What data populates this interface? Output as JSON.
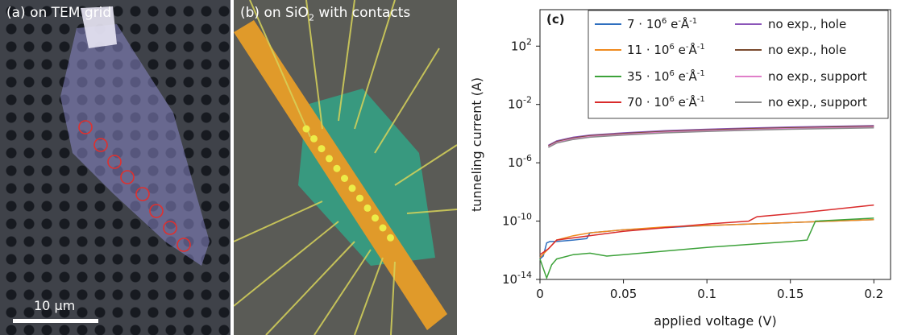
{
  "panels": {
    "a": {
      "label": "(a) on TEM grid",
      "scale_bar": "10 µm"
    },
    "b": {
      "label_pre": "(b) on SiO",
      "label_sub": "2",
      "label_post": " with contacts"
    }
  },
  "chart_data": {
    "type": "line",
    "panel_label": "(c)",
    "xlabel": "applied voltage (V)",
    "ylabel": "tunneling current (A)",
    "xlim": [
      0,
      0.21
    ],
    "ylim_log10": [
      -14,
      4.5
    ],
    "yscale": "log",
    "xticks": [
      0,
      0.05,
      0.1,
      0.15,
      0.2
    ],
    "xtick_labels": [
      "0",
      "0.05",
      "0.1",
      "0.15",
      "0.2"
    ],
    "yticks_log10": [
      2,
      -2,
      -6,
      -10,
      -14
    ],
    "ytick_base": "10",
    "ytick_exponents": [
      "2",
      "-2",
      "-6",
      "-10",
      "-14"
    ],
    "legend_position": "top",
    "series": [
      {
        "name_pre": "7 · 10",
        "name_sup": "6",
        "name_mid": " e",
        "name_sup2": "-",
        "name_post": "Å",
        "name_sup3": "-1",
        "color": "#2f6fbf",
        "x": [
          0,
          0.002,
          0.004,
          0.006,
          0.01,
          0.02,
          0.028,
          0.03,
          0.05,
          0.1,
          0.15,
          0.2
        ],
        "log10y": [
          -12.6,
          -12.4,
          -11.5,
          -11.4,
          -11.4,
          -11.3,
          -11.2,
          -10.8,
          -10.6,
          -10.3,
          -10.1,
          -9.9
        ]
      },
      {
        "name_pre": "11 · 10",
        "name_sup": "6",
        "name_mid": " e",
        "name_sup2": "-",
        "name_post": "Å",
        "name_sup3": "-1",
        "color": "#ef8a1f",
        "x": [
          0,
          0.005,
          0.01,
          0.02,
          0.03,
          0.05,
          0.075,
          0.1,
          0.125,
          0.15,
          0.175,
          0.2
        ],
        "log10y": [
          -12.5,
          -11.9,
          -11.3,
          -11.0,
          -10.8,
          -10.6,
          -10.4,
          -10.3,
          -10.2,
          -10.1,
          -10.0,
          -9.9
        ]
      },
      {
        "name_pre": "35 · 10",
        "name_sup": "6",
        "name_mid": " e",
        "name_sup2": "-",
        "name_post": "Å",
        "name_sup3": "-1",
        "color": "#3da23a",
        "x": [
          0,
          0.004,
          0.007,
          0.01,
          0.02,
          0.03,
          0.04,
          0.05,
          0.1,
          0.15,
          0.16,
          0.165,
          0.2
        ],
        "log10y": [
          -12.6,
          -13.9,
          -13.0,
          -12.6,
          -12.3,
          -12.2,
          -12.4,
          -12.3,
          -11.8,
          -11.4,
          -11.3,
          -10.0,
          -9.8
        ]
      },
      {
        "name_pre": "70 · 10",
        "name_sup": "6",
        "name_mid": " e",
        "name_sup2": "-",
        "name_post": "Å",
        "name_sup3": "-1",
        "color": "#d92b2b",
        "x": [
          0,
          0.005,
          0.01,
          0.05,
          0.1,
          0.125,
          0.13,
          0.15,
          0.175,
          0.2
        ],
        "log10y": [
          -12.3,
          -11.9,
          -11.3,
          -10.7,
          -10.2,
          -10.0,
          -9.7,
          -9.5,
          -9.2,
          -8.9
        ]
      },
      {
        "name": "no exp., hole",
        "color": "#8b55b8",
        "x": [
          0.005,
          0.01,
          0.02,
          0.03,
          0.05,
          0.075,
          0.1,
          0.125,
          0.15,
          0.175,
          0.2
        ],
        "log10y": [
          -4.8,
          -4.5,
          -4.25,
          -4.1,
          -3.95,
          -3.8,
          -3.7,
          -3.62,
          -3.55,
          -3.5,
          -3.45
        ]
      },
      {
        "name": "no exp., hole",
        "color": "#7a4a2e",
        "x": [
          0.005,
          0.01,
          0.02,
          0.03,
          0.05,
          0.075,
          0.1,
          0.125,
          0.15,
          0.175,
          0.2
        ],
        "log10y": [
          -4.85,
          -4.55,
          -4.3,
          -4.15,
          -4.0,
          -3.85,
          -3.75,
          -3.67,
          -3.6,
          -3.55,
          -3.5
        ]
      },
      {
        "name": "no exp., support",
        "color": "#e07fc9",
        "x": [
          0.005,
          0.01,
          0.02,
          0.03,
          0.05,
          0.075,
          0.1,
          0.125,
          0.15,
          0.175,
          0.2
        ],
        "log10y": [
          -4.9,
          -4.6,
          -4.35,
          -4.2,
          -4.05,
          -3.9,
          -3.8,
          -3.72,
          -3.65,
          -3.6,
          -3.55
        ]
      },
      {
        "name": "no exp., support",
        "color": "#8c8c8c",
        "x": [
          0.005,
          0.01,
          0.02,
          0.03,
          0.05,
          0.075,
          0.1,
          0.125,
          0.15,
          0.175,
          0.2
        ],
        "log10y": [
          -4.95,
          -4.65,
          -4.4,
          -4.25,
          -4.1,
          -3.95,
          -3.85,
          -3.77,
          -3.7,
          -3.65,
          -3.6
        ]
      }
    ]
  }
}
